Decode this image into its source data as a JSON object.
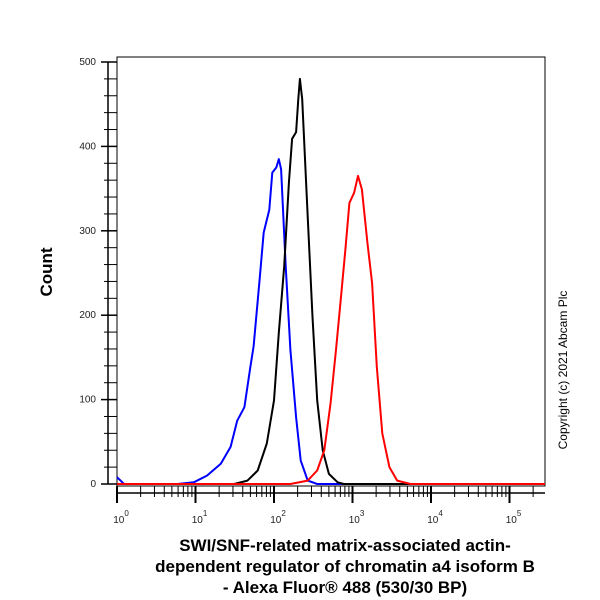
{
  "chart_data": {
    "type": "line",
    "title": "",
    "xlabel_lines": [
      "SWI/SNF-related matrix-associated actin-",
      "dependent regulator of chromatin a4 isoform B",
      "- Alexa Fluor® 488 (530/30 BP)"
    ],
    "ylabel": "Count",
    "x_scale": "log",
    "xlim": [
      1,
      290000
    ],
    "ylim": [
      0,
      500
    ],
    "x_ticks": [
      {
        "base": "10",
        "exp": "0"
      },
      {
        "base": "10",
        "exp": "1"
      },
      {
        "base": "10",
        "exp": "2"
      },
      {
        "base": "10",
        "exp": "3"
      },
      {
        "base": "10",
        "exp": "4"
      },
      {
        "base": "10",
        "exp": "5"
      }
    ],
    "y_ticks": [
      "0",
      "100",
      "200",
      "300",
      "400",
      "500"
    ],
    "grid": false,
    "legend": "none",
    "series": [
      {
        "color": "#0000ff",
        "x": [
          1,
          1.23,
          5.9,
          9.5,
          14,
          21,
          28,
          34,
          42,
          50,
          55,
          65,
          74,
          87,
          95,
          107,
          115,
          123,
          141,
          162,
          191,
          219,
          269,
          355,
          1000,
          290000
        ],
        "y": [
          8,
          0,
          0,
          2,
          10,
          24,
          44,
          75,
          91,
          139,
          163,
          238,
          298,
          325,
          369,
          375,
          385,
          373,
          258,
          159,
          79,
          28,
          4,
          0,
          0,
          0
        ]
      },
      {
        "color": "#000000",
        "x": [
          1,
          31,
          46,
          62,
          81,
          100,
          115,
          135,
          155,
          170,
          191,
          204,
          214,
          229,
          269,
          309,
          355,
          417,
          501,
          646,
          776,
          290000
        ],
        "y": [
          0,
          0,
          4,
          16,
          48,
          99,
          179,
          258,
          357,
          409,
          417,
          456,
          480,
          456,
          317,
          198,
          99,
          40,
          12,
          2,
          0,
          0
        ]
      },
      {
        "color": "#ff0000",
        "x": [
          1,
          162,
          269,
          355,
          437,
          525,
          617,
          708,
          813,
          912,
          1047,
          1175,
          1318,
          1549,
          1778,
          2042,
          2399,
          2951,
          3715,
          5495,
          290000
        ],
        "y": [
          0,
          0,
          4,
          16,
          40,
          95,
          159,
          218,
          278,
          333,
          345,
          365,
          349,
          286,
          238,
          139,
          60,
          20,
          4,
          0,
          0
        ]
      }
    ]
  },
  "copyright": "Copyright (c) 2021 Abcam Plc"
}
